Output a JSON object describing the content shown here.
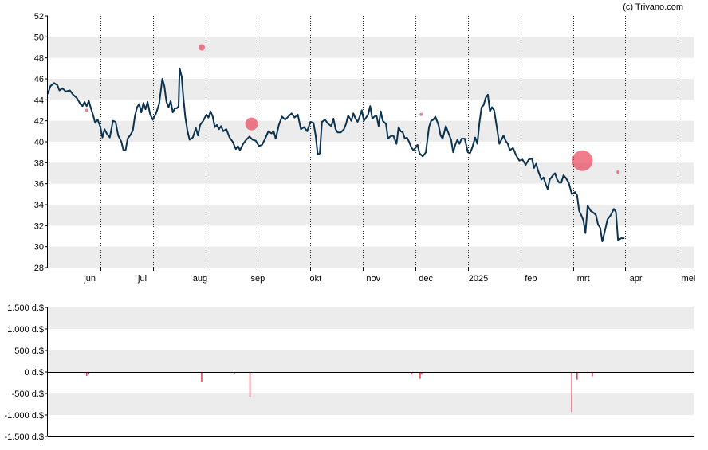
{
  "credit": "(c) Trivano.com",
  "colors": {
    "background": "#ffffff",
    "band": "#ececec",
    "price_line": "#0b3350",
    "marker": "#e8384f",
    "volume_bar": "#e8384f",
    "axis": "#000000"
  },
  "chart_data": [
    {
      "type": "line",
      "x_labels": [
        "jun",
        "jul",
        "aug",
        "sep",
        "okt",
        "nov",
        "dec",
        "2025",
        "feb",
        "mrt",
        "apr",
        "mei"
      ],
      "x_label_positions": [
        0.8,
        1.8,
        2.9,
        4.0,
        5.1,
        6.2,
        7.2,
        8.2,
        9.2,
        10.2,
        11.2,
        12.2
      ],
      "x_gridlines": [
        1.0,
        2.0,
        3.0,
        4.0,
        5.0,
        6.0,
        7.0,
        8.0,
        9.0,
        10.0,
        11.0,
        12.0
      ],
      "xlim": [
        0,
        12.3
      ],
      "ylim": [
        28,
        52
      ],
      "yticks": [
        28,
        30,
        32,
        34,
        36,
        38,
        40,
        42,
        44,
        46,
        48,
        50,
        52
      ],
      "grid": "alternating horizontal bands, dotted vertical month lines",
      "series": [
        {
          "values": [
            [
              0.0,
              44.6
            ],
            [
              0.05,
              45.3
            ],
            [
              0.12,
              45.6
            ],
            [
              0.18,
              45.4
            ],
            [
              0.22,
              44.9
            ],
            [
              0.28,
              45.1
            ],
            [
              0.34,
              44.8
            ],
            [
              0.42,
              44.9
            ],
            [
              0.48,
              44.5
            ],
            [
              0.55,
              44.2
            ],
            [
              0.62,
              43.6
            ],
            [
              0.66,
              43.4
            ],
            [
              0.7,
              43.8
            ],
            [
              0.74,
              43.4
            ],
            [
              0.78,
              43.9
            ],
            [
              0.82,
              43.2
            ],
            [
              0.86,
              42.6
            ],
            [
              0.9,
              41.8
            ],
            [
              0.95,
              42.1
            ],
            [
              1.0,
              41.4
            ],
            [
              1.04,
              40.4
            ],
            [
              1.08,
              41.2
            ],
            [
              1.12,
              40.8
            ],
            [
              1.18,
              40.4
            ],
            [
              1.24,
              42.0
            ],
            [
              1.29,
              41.9
            ],
            [
              1.34,
              40.6
            ],
            [
              1.4,
              40.0
            ],
            [
              1.44,
              39.2
            ],
            [
              1.48,
              39.2
            ],
            [
              1.52,
              40.3
            ],
            [
              1.58,
              40.7
            ],
            [
              1.62,
              41.1
            ],
            [
              1.66,
              42.5
            ],
            [
              1.7,
              43.3
            ],
            [
              1.74,
              43.6
            ],
            [
              1.78,
              42.8
            ],
            [
              1.82,
              43.7
            ],
            [
              1.86,
              43.1
            ],
            [
              1.9,
              43.8
            ],
            [
              1.95,
              42.6
            ],
            [
              2.0,
              42.1
            ],
            [
              2.06,
              42.7
            ],
            [
              2.12,
              43.6
            ],
            [
              2.18,
              46.0
            ],
            [
              2.22,
              45.3
            ],
            [
              2.26,
              43.8
            ],
            [
              2.3,
              43.3
            ],
            [
              2.34,
              43.9
            ],
            [
              2.38,
              42.8
            ],
            [
              2.42,
              43.2
            ],
            [
              2.46,
              43.2
            ],
            [
              2.49,
              43.4
            ],
            [
              2.51,
              47.0
            ],
            [
              2.55,
              46.2
            ],
            [
              2.58,
              44.3
            ],
            [
              2.62,
              42.3
            ],
            [
              2.66,
              41.0
            ],
            [
              2.7,
              40.2
            ],
            [
              2.76,
              40.4
            ],
            [
              2.82,
              41.3
            ],
            [
              2.86,
              40.6
            ],
            [
              2.9,
              41.6
            ],
            [
              2.96,
              42.0
            ],
            [
              3.02,
              42.6
            ],
            [
              3.06,
              42.3
            ],
            [
              3.1,
              42.9
            ],
            [
              3.14,
              42.4
            ],
            [
              3.18,
              41.4
            ],
            [
              3.22,
              41.6
            ],
            [
              3.26,
              41.2
            ],
            [
              3.3,
              41.5
            ],
            [
              3.34,
              41.0
            ],
            [
              3.4,
              41.2
            ],
            [
              3.46,
              40.4
            ],
            [
              3.52,
              40.0
            ],
            [
              3.58,
              39.3
            ],
            [
              3.62,
              39.6
            ],
            [
              3.66,
              39.2
            ],
            [
              3.72,
              39.8
            ],
            [
              3.78,
              40.2
            ],
            [
              3.84,
              40.5
            ],
            [
              3.9,
              40.2
            ],
            [
              3.96,
              40.1
            ],
            [
              4.02,
              39.6
            ],
            [
              4.08,
              39.7
            ],
            [
              4.14,
              40.3
            ],
            [
              4.2,
              41.0
            ],
            [
              4.26,
              40.8
            ],
            [
              4.3,
              41.0
            ],
            [
              4.34,
              40.3
            ],
            [
              4.4,
              41.6
            ],
            [
              4.46,
              42.4
            ],
            [
              4.52,
              42.1
            ],
            [
              4.58,
              42.4
            ],
            [
              4.64,
              42.7
            ],
            [
              4.7,
              42.3
            ],
            [
              4.76,
              42.6
            ],
            [
              4.82,
              41.2
            ],
            [
              4.88,
              41.4
            ],
            [
              4.94,
              41.0
            ],
            [
              5.0,
              41.9
            ],
            [
              5.06,
              41.8
            ],
            [
              5.1,
              40.6
            ],
            [
              5.14,
              38.8
            ],
            [
              5.18,
              38.9
            ],
            [
              5.22,
              41.9
            ],
            [
              5.28,
              42.1
            ],
            [
              5.34,
              41.7
            ],
            [
              5.4,
              41.5
            ],
            [
              5.44,
              42.2
            ],
            [
              5.48,
              41.2
            ],
            [
              5.52,
              40.9
            ],
            [
              5.58,
              40.9
            ],
            [
              5.64,
              41.2
            ],
            [
              5.68,
              41.7
            ],
            [
              5.72,
              42.5
            ],
            [
              5.78,
              42.0
            ],
            [
              5.82,
              42.7
            ],
            [
              5.86,
              42.2
            ],
            [
              5.9,
              41.9
            ],
            [
              5.94,
              42.4
            ],
            [
              5.98,
              43.0
            ],
            [
              6.02,
              42.0
            ],
            [
              6.06,
              42.3
            ],
            [
              6.1,
              42.6
            ],
            [
              6.14,
              43.4
            ],
            [
              6.18,
              42.2
            ],
            [
              6.22,
              42.4
            ],
            [
              6.26,
              42.5
            ],
            [
              6.3,
              41.5
            ],
            [
              6.34,
              42.9
            ],
            [
              6.38,
              42.0
            ],
            [
              6.44,
              41.7
            ],
            [
              6.48,
              40.3
            ],
            [
              6.52,
              40.5
            ],
            [
              6.58,
              40.6
            ],
            [
              6.64,
              39.8
            ],
            [
              6.68,
              41.4
            ],
            [
              6.72,
              41.0
            ],
            [
              6.76,
              40.9
            ],
            [
              6.8,
              40.3
            ],
            [
              6.84,
              40.4
            ],
            [
              6.88,
              40.0
            ],
            [
              6.92,
              39.5
            ],
            [
              6.96,
              39.2
            ],
            [
              7.0,
              39.4
            ],
            [
              7.04,
              39.7
            ],
            [
              7.08,
              38.9
            ],
            [
              7.14,
              38.6
            ],
            [
              7.2,
              39.0
            ],
            [
              7.26,
              41.4
            ],
            [
              7.3,
              42.0
            ],
            [
              7.34,
              42.1
            ],
            [
              7.38,
              42.4
            ],
            [
              7.44,
              41.6
            ],
            [
              7.48,
              40.6
            ],
            [
              7.52,
              40.3
            ],
            [
              7.58,
              41.5
            ],
            [
              7.64,
              40.7
            ],
            [
              7.68,
              40.2
            ],
            [
              7.72,
              39.0
            ],
            [
              7.76,
              39.7
            ],
            [
              7.8,
              40.2
            ],
            [
              7.84,
              39.8
            ],
            [
              7.88,
              40.3
            ],
            [
              7.94,
              40.3
            ],
            [
              8.0,
              39.0
            ],
            [
              8.04,
              38.9
            ],
            [
              8.08,
              39.4
            ],
            [
              8.14,
              40.4
            ],
            [
              8.18,
              39.8
            ],
            [
              8.22,
              41.8
            ],
            [
              8.26,
              43.3
            ],
            [
              8.3,
              43.5
            ],
            [
              8.34,
              44.2
            ],
            [
              8.38,
              44.5
            ],
            [
              8.42,
              42.9
            ],
            [
              8.46,
              43.3
            ],
            [
              8.5,
              43.0
            ],
            [
              8.56,
              41.1
            ],
            [
              8.6,
              39.8
            ],
            [
              8.64,
              40.2
            ],
            [
              8.68,
              40.6
            ],
            [
              8.72,
              40.1
            ],
            [
              8.76,
              39.8
            ],
            [
              8.8,
              39.2
            ],
            [
              8.86,
              39.4
            ],
            [
              8.92,
              38.7
            ],
            [
              8.98,
              38.2
            ],
            [
              9.04,
              38.3
            ],
            [
              9.1,
              37.8
            ],
            [
              9.16,
              38.3
            ],
            [
              9.22,
              38.4
            ],
            [
              9.26,
              37.5
            ],
            [
              9.3,
              37.9
            ],
            [
              9.34,
              37.2
            ],
            [
              9.4,
              36.4
            ],
            [
              9.44,
              36.6
            ],
            [
              9.48,
              36.0
            ],
            [
              9.52,
              35.5
            ],
            [
              9.56,
              36.4
            ],
            [
              9.62,
              36.8
            ],
            [
              9.66,
              37.0
            ],
            [
              9.7,
              36.4
            ],
            [
              9.74,
              36.1
            ],
            [
              9.78,
              36.1
            ],
            [
              9.82,
              36.8
            ],
            [
              9.86,
              36.6
            ],
            [
              9.92,
              36.1
            ],
            [
              9.98,
              35.0
            ],
            [
              10.04,
              35.2
            ],
            [
              10.08,
              34.9
            ],
            [
              10.12,
              33.4
            ],
            [
              10.16,
              33.0
            ],
            [
              10.2,
              32.5
            ],
            [
              10.24,
              31.3
            ],
            [
              10.28,
              33.9
            ],
            [
              10.34,
              33.4
            ],
            [
              10.4,
              33.2
            ],
            [
              10.44,
              33.0
            ],
            [
              10.48,
              32.1
            ],
            [
              10.52,
              31.8
            ],
            [
              10.56,
              30.5
            ],
            [
              10.6,
              31.3
            ],
            [
              10.66,
              32.6
            ],
            [
              10.72,
              33.0
            ],
            [
              10.78,
              33.6
            ],
            [
              10.82,
              33.3
            ],
            [
              10.86,
              30.6
            ],
            [
              10.92,
              30.8
            ],
            [
              10.97,
              30.8
            ]
          ]
        }
      ],
      "markers": [
        {
          "x": 0.74,
          "y": 43.0,
          "size": 2
        },
        {
          "x": 2.93,
          "y": 49.0,
          "size": 4
        },
        {
          "x": 3.88,
          "y": 41.7,
          "size": 8
        },
        {
          "x": 7.11,
          "y": 42.6,
          "size": 2
        },
        {
          "x": 10.18,
          "y": 38.2,
          "size": 13
        },
        {
          "x": 10.86,
          "y": 37.1,
          "size": 2
        }
      ]
    },
    {
      "type": "bar",
      "ylim": [
        -1500,
        1500
      ],
      "ytick_values": [
        1500,
        1000,
        500,
        0,
        -500,
        -1000,
        -1500
      ],
      "ytick_labels": [
        "1.500 d.$",
        "1.000 d.$",
        "500 d.$",
        "0 d.$",
        "-500 d.$",
        "-1.000 d.$",
        "-1.500 d.$"
      ],
      "values": [
        [
          0.74,
          -90
        ],
        [
          0.78,
          -60
        ],
        [
          2.93,
          -230
        ],
        [
          3.55,
          -40
        ],
        [
          3.85,
          -580
        ],
        [
          6.93,
          -60
        ],
        [
          7.09,
          -160
        ],
        [
          7.12,
          -60
        ],
        [
          9.98,
          -930
        ],
        [
          10.08,
          -180
        ],
        [
          10.37,
          -100
        ]
      ]
    }
  ]
}
